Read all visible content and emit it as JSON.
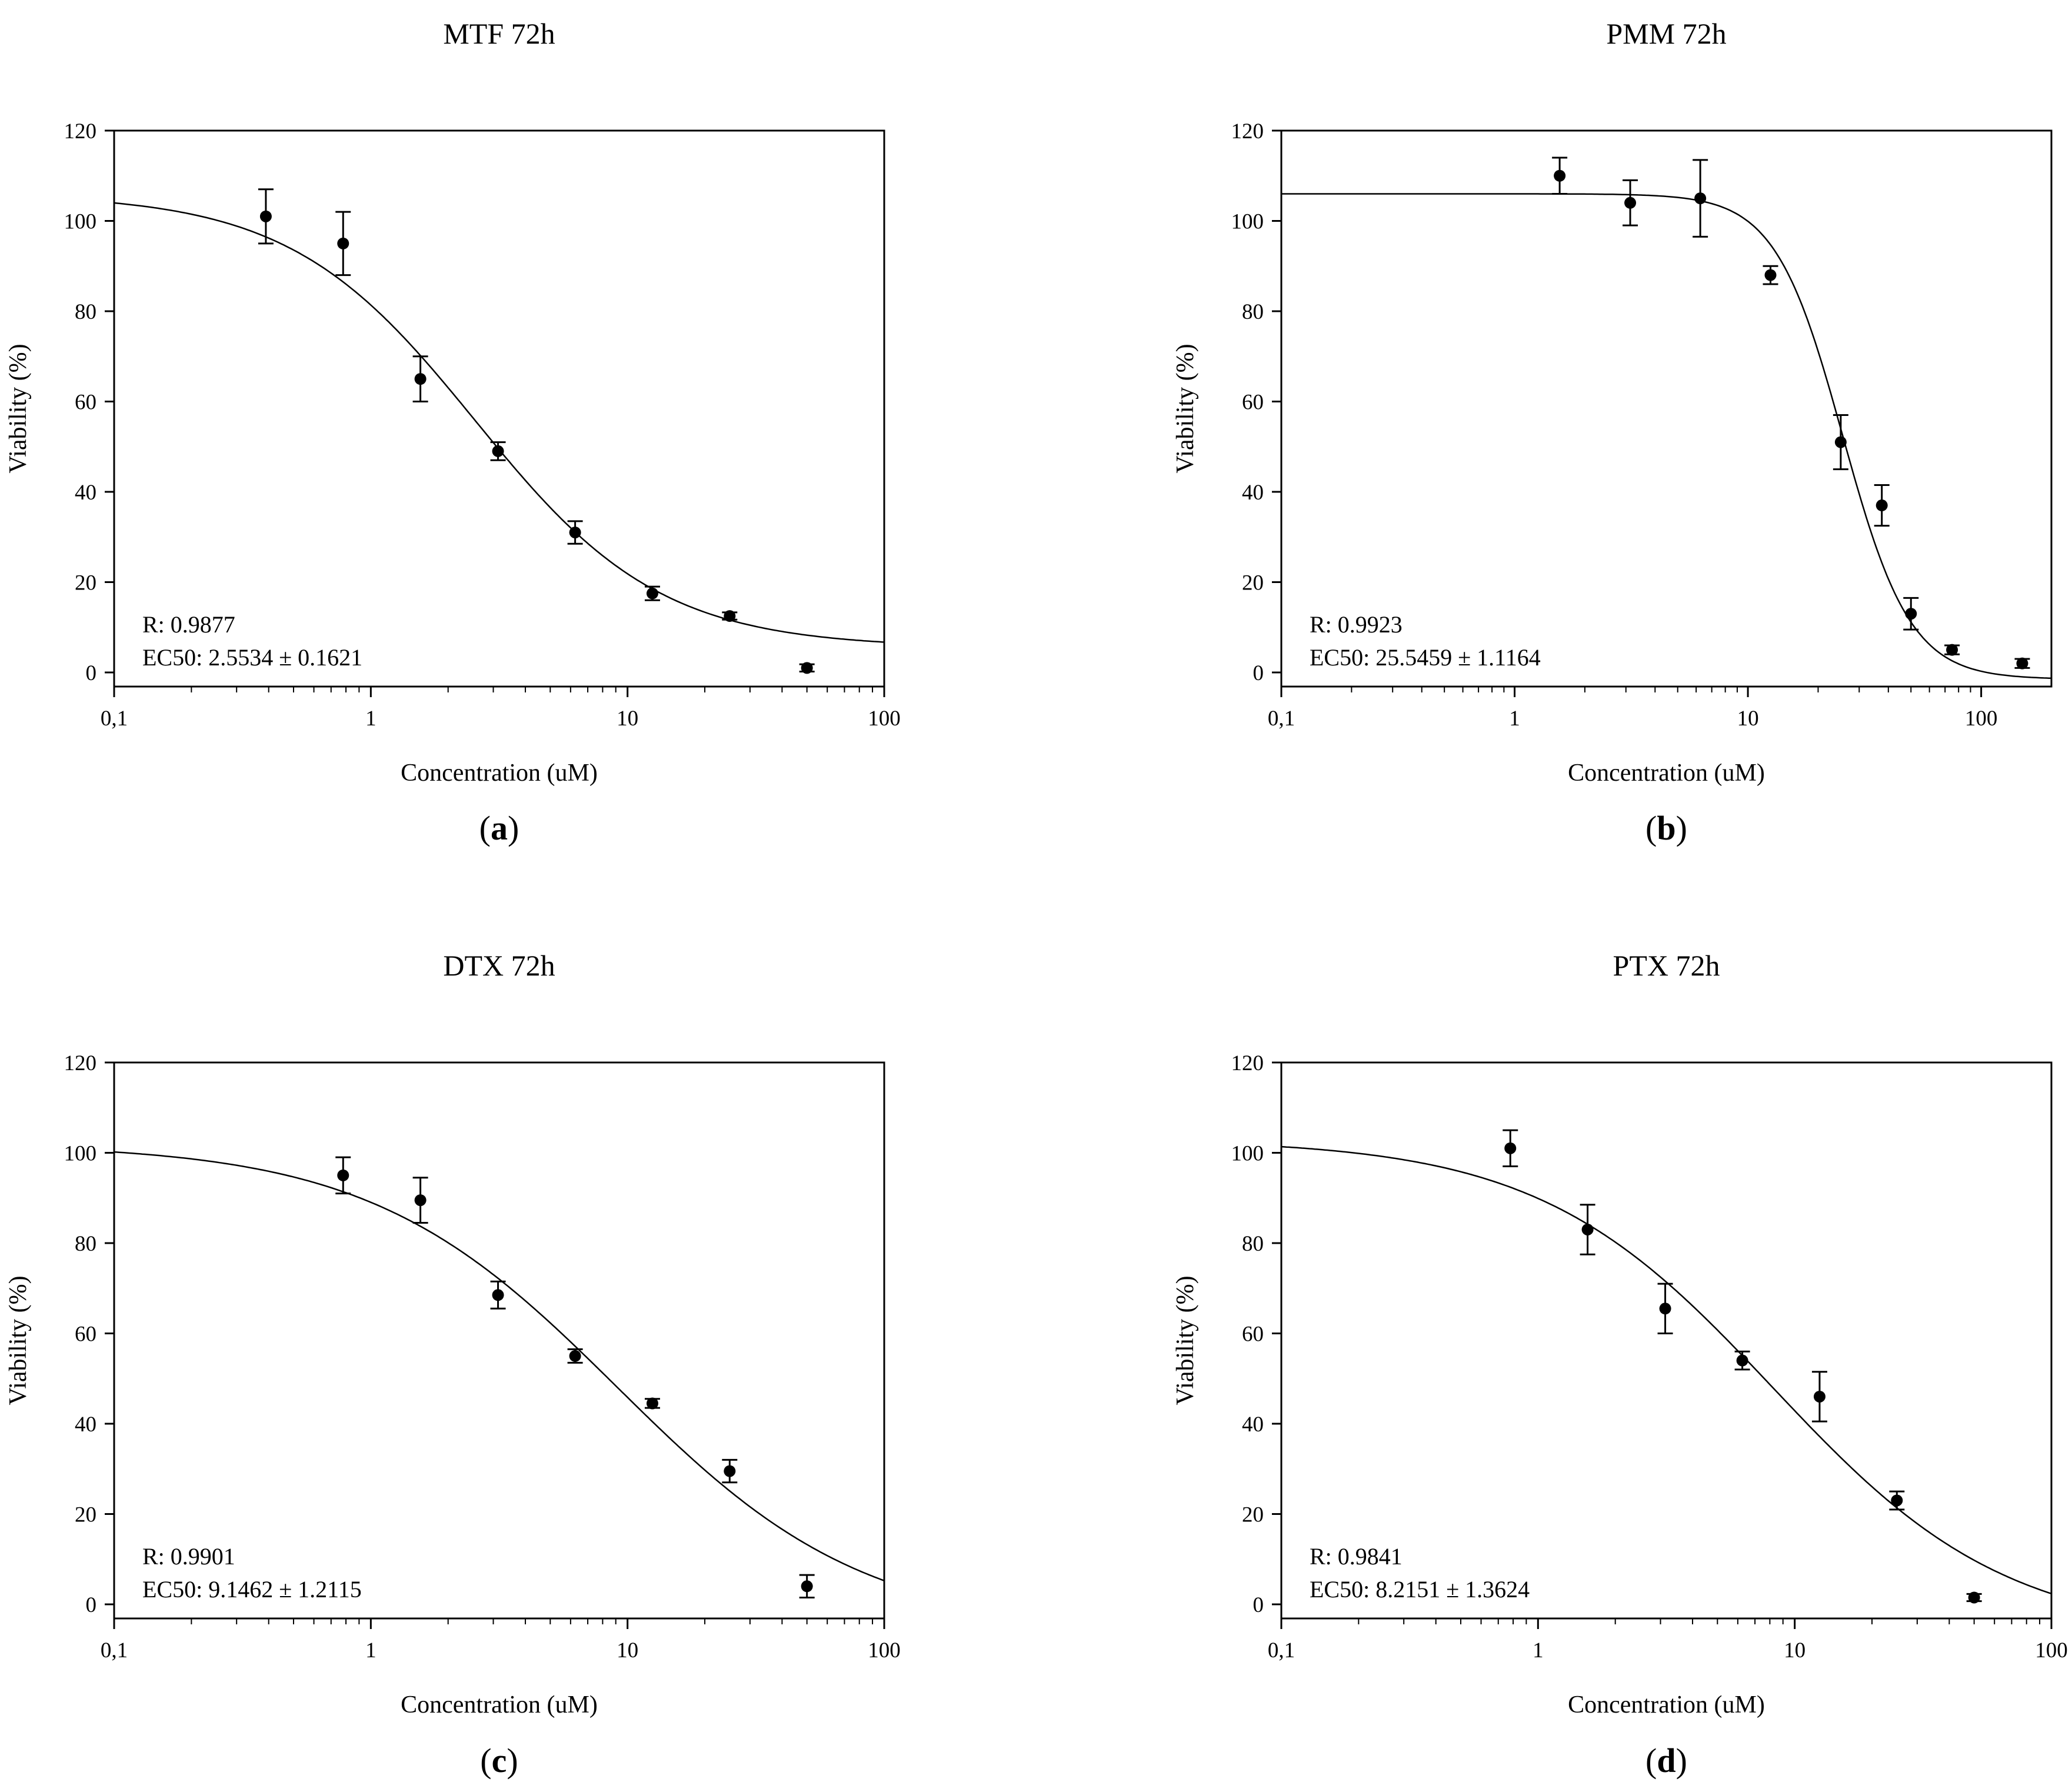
{
  "chart_data": [
    {
      "type": "scatter",
      "panel_label": "a",
      "title": "MTF 72h",
      "xlabel": "Concentration (uM)",
      "ylabel": "Viability (%)",
      "xscale": "log",
      "xlim": [
        0.1,
        100
      ],
      "ylim": [
        0,
        120
      ],
      "x_tick_values": [
        0.1,
        1,
        10,
        100
      ],
      "x_tick_labels": [
        "0,1",
        "1",
        "10",
        "100"
      ],
      "y_tick_values": [
        0,
        20,
        40,
        60,
        80,
        100,
        120
      ],
      "y_tick_labels": [
        "0",
        "20",
        "40",
        "60",
        "80",
        "100",
        "120"
      ],
      "grid": false,
      "annotation_r": "R: 0.9877",
      "annotation_ec50": "EC50: 2.5534 ± 0.1621",
      "points": {
        "x": [
          0.39,
          0.78,
          1.56,
          3.13,
          6.25,
          12.5,
          25,
          50
        ],
        "y": [
          101,
          95,
          65,
          49,
          31,
          17.5,
          12.5,
          1
        ],
        "err": [
          6,
          7,
          5,
          2,
          2.5,
          1.5,
          0.8,
          0.8
        ]
      },
      "fit": {
        "top": 106,
        "bottom": 5.5,
        "ec50": 2.5534,
        "hill": 1.2
      }
    },
    {
      "type": "scatter",
      "panel_label": "b",
      "title": "PMM 72h",
      "xlabel": "Concentration (uM)",
      "ylabel": "Viability (%)",
      "xscale": "log",
      "xlim": [
        0.1,
        200
      ],
      "ylim": [
        0,
        120
      ],
      "x_tick_values": [
        0.1,
        1,
        10,
        100
      ],
      "x_tick_labels": [
        "0,1",
        "1",
        "10",
        "100"
      ],
      "y_tick_values": [
        0,
        20,
        40,
        60,
        80,
        100,
        120
      ],
      "y_tick_labels": [
        "0",
        "20",
        "40",
        "60",
        "80",
        "100",
        "120"
      ],
      "grid": false,
      "annotation_r": "R: 0.9923",
      "annotation_ec50": "EC50: 25.5459 ± 1.1164",
      "points": {
        "x": [
          1.56,
          3.13,
          6.25,
          12.5,
          25,
          37.5,
          50,
          75,
          150
        ],
        "y": [
          110,
          104,
          105,
          88,
          51,
          37,
          13,
          5,
          2
        ],
        "err": [
          4,
          5,
          8.5,
          2,
          6,
          4.5,
          3.5,
          1,
          1
        ]
      },
      "fit": {
        "top": 106,
        "bottom": -1.5,
        "ec50": 25.5459,
        "hill": 3.0
      }
    },
    {
      "type": "scatter",
      "panel_label": "c",
      "title": "DTX 72h",
      "xlabel": "Concentration (uM)",
      "ylabel": "Viability (%)",
      "xscale": "log",
      "xlim": [
        0.1,
        100
      ],
      "ylim": [
        0,
        120
      ],
      "x_tick_values": [
        0.1,
        1,
        10,
        100
      ],
      "x_tick_labels": [
        "0,1",
        "1",
        "10",
        "100"
      ],
      "y_tick_values": [
        0,
        20,
        40,
        60,
        80,
        100,
        120
      ],
      "y_tick_labels": [
        "0",
        "20",
        "40",
        "60",
        "80",
        "100",
        "120"
      ],
      "grid": false,
      "annotation_r": "R: 0.9901",
      "annotation_ec50": "EC50: 9.1462 ± 1.2115",
      "points": {
        "x": [
          0.78,
          1.56,
          3.13,
          6.25,
          12.5,
          25,
          50
        ],
        "y": [
          95,
          89.5,
          68.5,
          55,
          44.5,
          29.5,
          4
        ],
        "err": [
          4,
          5,
          3,
          1.5,
          1,
          2.5,
          2.5
        ]
      },
      "fit": {
        "top": 102,
        "bottom": -6,
        "ec50": 9.1462,
        "hill": 0.9
      }
    },
    {
      "type": "scatter",
      "panel_label": "d",
      "title": "PTX 72h",
      "xlabel": "Concentration (uM)",
      "ylabel": "Viability (%)",
      "xscale": "log",
      "xlim": [
        0.1,
        100
      ],
      "ylim": [
        0,
        120
      ],
      "x_tick_values": [
        0.1,
        1,
        10,
        100
      ],
      "x_tick_labels": [
        "0,1",
        "1",
        "10",
        "100"
      ],
      "y_tick_values": [
        0,
        20,
        40,
        60,
        80,
        100,
        120
      ],
      "y_tick_labels": [
        "0",
        "20",
        "40",
        "60",
        "80",
        "100",
        "120"
      ],
      "grid": false,
      "annotation_r": "R: 0.9841",
      "annotation_ec50": "EC50: 8.2151 ± 1.3624",
      "points": {
        "x": [
          0.78,
          1.56,
          3.13,
          6.25,
          12.5,
          25,
          50
        ],
        "y": [
          101,
          83,
          65.5,
          54,
          46,
          23,
          1.5
        ],
        "err": [
          4,
          5.5,
          5.5,
          2,
          5.5,
          2,
          0.8
        ]
      },
      "fit": {
        "top": 103,
        "bottom": -7,
        "ec50": 8.2151,
        "hill": 0.95
      }
    }
  ]
}
